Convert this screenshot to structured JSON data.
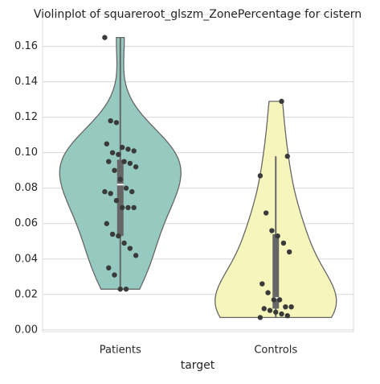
{
  "chart_data": {
    "type": "violin",
    "title": "Violinplot of squareroot_glszm_ZonePercentage for cistern",
    "xlabel": "target",
    "categories": [
      "Patients",
      "Controls"
    ],
    "colors": [
      "#96cac1",
      "#f6f6bc"
    ],
    "ylim": [
      -0.001,
      0.178
    ],
    "yticks": [
      {
        "value": 0,
        "label": "0.00"
      },
      {
        "value": 0.02,
        "label": "0.02"
      },
      {
        "value": 0.04,
        "label": "0.04"
      },
      {
        "value": 0.06,
        "label": "0.06"
      },
      {
        "value": 0.08,
        "label": "0.08"
      },
      {
        "value": 0.1,
        "label": "0.10"
      },
      {
        "value": 0.12,
        "label": "0.12"
      },
      {
        "value": 0.14,
        "label": "0.14"
      },
      {
        "value": 0.16,
        "label": "0.16"
      }
    ],
    "grid": true,
    "groups": [
      {
        "points": [
          0.165,
          0.118,
          0.117,
          0.103,
          0.102,
          0.101,
          0.105,
          0.1,
          0.099,
          0.095,
          0.094,
          0.092,
          0.095,
          0.09,
          0.085,
          0.08,
          0.078,
          0.078,
          0.077,
          0.073,
          0.069,
          0.069,
          0.069,
          0.06,
          0.054,
          0.053,
          0.049,
          0.046,
          0.042,
          0.035,
          0.031,
          0.023,
          0.023
        ],
        "q1": 0.053,
        "median": 0.082,
        "q3": 0.096,
        "whisker_low": 0.023,
        "whisker_high": 0.165
      },
      {
        "points": [
          0.129,
          0.098,
          0.087,
          0.066,
          0.056,
          0.053,
          0.049,
          0.044,
          0.026,
          0.021,
          0.017,
          0.017,
          0.013,
          0.013,
          0.012,
          0.011,
          0.01,
          0.009,
          0.008,
          0.007
        ],
        "q1": 0.012,
        "median": 0.018,
        "q3": 0.054,
        "whisker_low": 0.007,
        "whisker_high": 0.098
      }
    ]
  }
}
